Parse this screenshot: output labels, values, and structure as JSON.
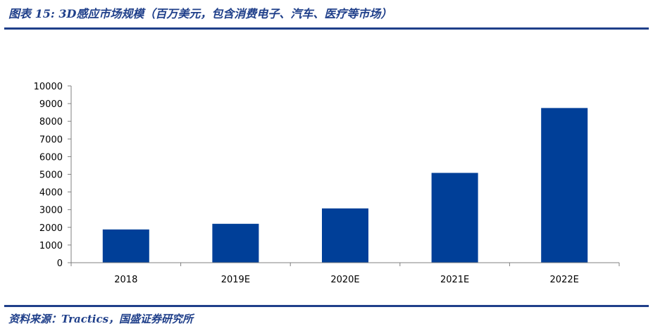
{
  "figure": {
    "title": "图表 15:  3D感应市场规模（百万美元，包含消费电子、汽车、医疗等市场）",
    "source": "资料来源：Tractics，国盛证券研究所"
  },
  "colors": {
    "bar": "#003f98",
    "accent": "#1f3f8a",
    "axis": "#808080"
  },
  "chart_data": {
    "type": "bar",
    "categories": [
      "2018",
      "2019E",
      "2020E",
      "2021E",
      "2022E"
    ],
    "values": [
      1880,
      2200,
      3070,
      5080,
      8750
    ],
    "ylim": [
      0,
      10000
    ],
    "yticks": [
      "0",
      "1000",
      "2000",
      "3000",
      "4000",
      "5000",
      "6000",
      "7000",
      "8000",
      "9000",
      "10000"
    ],
    "grid": false,
    "legend": "none"
  }
}
